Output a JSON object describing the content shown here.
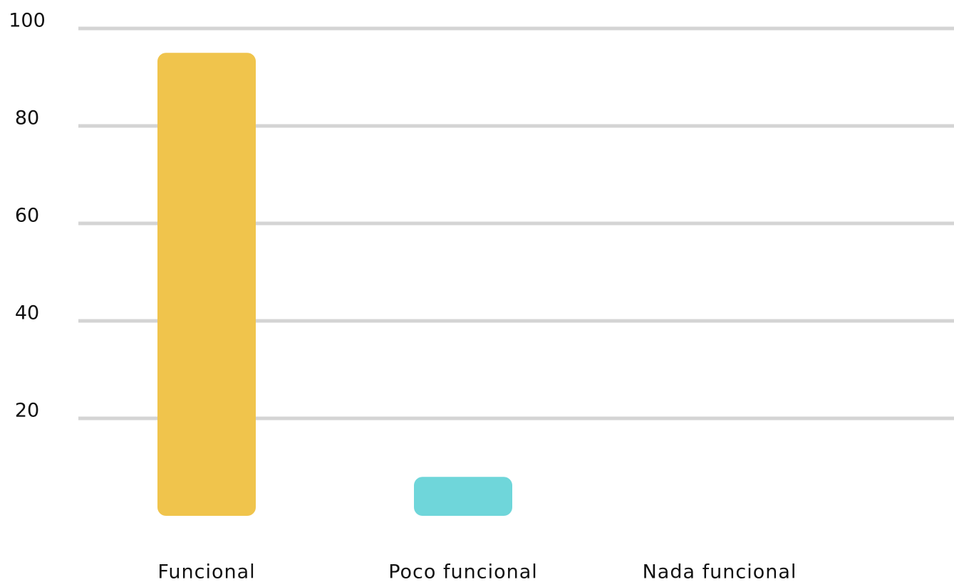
{
  "chart_data": {
    "type": "bar",
    "categories": [
      "Funcional",
      "Poco funcional",
      "Nada funcional"
    ],
    "values": [
      95,
      8,
      0
    ],
    "colors": [
      "#f0c44c",
      "#6fd6da",
      "#6fd6da"
    ],
    "ylim": [
      0,
      100
    ],
    "yticks": [
      20,
      40,
      60,
      80,
      100
    ],
    "grid": true
  }
}
